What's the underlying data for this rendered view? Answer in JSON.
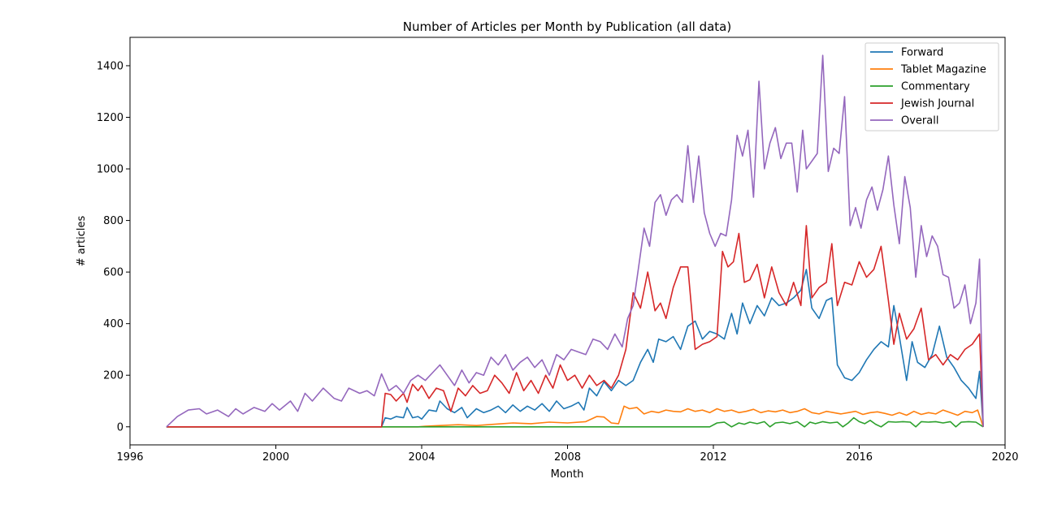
{
  "chart_data": {
    "type": "line",
    "title": "Number of Articles per Month by Publication (all data)",
    "xlabel": "Month",
    "ylabel": "# articles",
    "xlim": [
      1996,
      2020
    ],
    "ylim": [
      -70,
      1510
    ],
    "x_ticks": [
      {
        "value": 1996,
        "label": "1996"
      },
      {
        "value": 2000,
        "label": "2000"
      },
      {
        "value": 2004,
        "label": "2004"
      },
      {
        "value": 2008,
        "label": "2008"
      },
      {
        "value": 2012,
        "label": "2012"
      },
      {
        "value": 2016,
        "label": "2016"
      },
      {
        "value": 2020,
        "label": "2020"
      }
    ],
    "y_ticks": [
      {
        "value": 0,
        "label": "0"
      },
      {
        "value": 200,
        "label": "200"
      },
      {
        "value": 400,
        "label": "400"
      },
      {
        "value": 600,
        "label": "600"
      },
      {
        "value": 800,
        "label": "800"
      },
      {
        "value": 1000,
        "label": "1000"
      },
      {
        "value": 1200,
        "label": "1200"
      },
      {
        "value": 1400,
        "label": "1400"
      }
    ],
    "grid": false,
    "legend_position": "top-right",
    "series": [
      {
        "name": "Forward",
        "color": "#1f77b4",
        "x": [
          1997.0,
          2002.9,
          2003.0,
          2003.15,
          2003.3,
          2003.5,
          2003.6,
          2003.75,
          2003.9,
          2004.0,
          2004.2,
          2004.4,
          2004.5,
          2004.7,
          2004.9,
          2005.1,
          2005.25,
          2005.5,
          2005.7,
          2005.9,
          2006.1,
          2006.3,
          2006.5,
          2006.7,
          2006.9,
          2007.1,
          2007.3,
          2007.5,
          2007.7,
          2007.9,
          2008.1,
          2008.3,
          2008.45,
          2008.6,
          2008.8,
          2009.0,
          2009.2,
          2009.4,
          2009.6,
          2009.8,
          2010.0,
          2010.2,
          2010.35,
          2010.5,
          2010.7,
          2010.9,
          2011.1,
          2011.3,
          2011.5,
          2011.7,
          2011.9,
          2012.1,
          2012.3,
          2012.5,
          2012.65,
          2012.8,
          2013.0,
          2013.2,
          2013.4,
          2013.6,
          2013.8,
          2014.0,
          2014.2,
          2014.4,
          2014.55,
          2014.7,
          2014.9,
          2015.1,
          2015.25,
          2015.4,
          2015.6,
          2015.8,
          2016.0,
          2016.2,
          2016.4,
          2016.6,
          2016.8,
          2016.95,
          2017.1,
          2017.3,
          2017.45,
          2017.6,
          2017.8,
          2018.0,
          2018.2,
          2018.4,
          2018.6,
          2018.8,
          2019.0,
          2019.1,
          2019.2,
          2019.3,
          2019.4
        ],
        "y": [
          0,
          0,
          35,
          30,
          40,
          35,
          75,
          35,
          40,
          30,
          65,
          60,
          100,
          70,
          55,
          75,
          35,
          70,
          55,
          65,
          80,
          55,
          85,
          60,
          80,
          65,
          90,
          60,
          100,
          70,
          80,
          95,
          65,
          150,
          120,
          175,
          140,
          180,
          160,
          180,
          250,
          300,
          250,
          340,
          330,
          350,
          300,
          390,
          410,
          340,
          370,
          360,
          340,
          440,
          360,
          480,
          400,
          470,
          430,
          500,
          470,
          480,
          500,
          530,
          610,
          460,
          420,
          490,
          500,
          240,
          190,
          180,
          210,
          260,
          300,
          330,
          310,
          470,
          350,
          180,
          330,
          250,
          230,
          280,
          390,
          270,
          230,
          180,
          150,
          130,
          110,
          215,
          0
        ]
      },
      {
        "name": "Tablet Magazine",
        "color": "#ff7f0e",
        "x": [
          1997.0,
          2003.9,
          2004.1,
          2004.5,
          2005.0,
          2005.5,
          2006.0,
          2006.5,
          2007.0,
          2007.5,
          2008.0,
          2008.5,
          2008.8,
          2009.0,
          2009.2,
          2009.4,
          2009.55,
          2009.7,
          2009.9,
          2010.1,
          2010.3,
          2010.5,
          2010.7,
          2010.9,
          2011.1,
          2011.3,
          2011.5,
          2011.7,
          2011.9,
          2012.1,
          2012.3,
          2012.5,
          2012.7,
          2012.9,
          2013.1,
          2013.3,
          2013.5,
          2013.7,
          2013.9,
          2014.1,
          2014.3,
          2014.5,
          2014.7,
          2014.9,
          2015.1,
          2015.3,
          2015.5,
          2015.7,
          2015.9,
          2016.1,
          2016.3,
          2016.5,
          2016.7,
          2016.9,
          2017.1,
          2017.3,
          2017.5,
          2017.7,
          2017.9,
          2018.1,
          2018.3,
          2018.5,
          2018.7,
          2018.9,
          2019.1,
          2019.25,
          2019.4
        ],
        "y": [
          0,
          0,
          2,
          5,
          8,
          5,
          10,
          15,
          12,
          18,
          15,
          20,
          40,
          38,
          15,
          12,
          80,
          70,
          75,
          50,
          60,
          55,
          65,
          60,
          58,
          70,
          60,
          65,
          55,
          70,
          60,
          65,
          55,
          60,
          68,
          55,
          62,
          58,
          65,
          55,
          60,
          70,
          55,
          50,
          60,
          55,
          50,
          55,
          60,
          48,
          55,
          58,
          52,
          45,
          55,
          45,
          60,
          48,
          55,
          50,
          65,
          55,
          45,
          60,
          55,
          65,
          0
        ]
      },
      {
        "name": "Commentary",
        "color": "#2ca02c",
        "x": [
          1997.0,
          2011.9,
          2012.1,
          2012.3,
          2012.5,
          2012.7,
          2012.85,
          2013.0,
          2013.2,
          2013.4,
          2013.55,
          2013.7,
          2013.9,
          2014.1,
          2014.3,
          2014.5,
          2014.65,
          2014.8,
          2015.0,
          2015.2,
          2015.4,
          2015.55,
          2015.7,
          2015.85,
          2016.0,
          2016.15,
          2016.3,
          2016.45,
          2016.6,
          2016.8,
          2017.0,
          2017.2,
          2017.4,
          2017.55,
          2017.7,
          2017.9,
          2018.1,
          2018.3,
          2018.5,
          2018.65,
          2018.8,
          2019.0,
          2019.2,
          2019.4
        ],
        "y": [
          0,
          0,
          15,
          18,
          0,
          15,
          10,
          18,
          12,
          20,
          0,
          15,
          18,
          12,
          20,
          0,
          18,
          12,
          20,
          15,
          18,
          0,
          15,
          35,
          20,
          12,
          25,
          10,
          0,
          20,
          18,
          20,
          18,
          0,
          20,
          18,
          20,
          15,
          20,
          0,
          18,
          20,
          18,
          0
        ]
      },
      {
        "name": "Jewish Journal",
        "color": "#d62728",
        "x": [
          1997.0,
          2002.9,
          2003.0,
          2003.15,
          2003.3,
          2003.5,
          2003.6,
          2003.75,
          2003.9,
          2004.0,
          2004.2,
          2004.4,
          2004.6,
          2004.8,
          2005.0,
          2005.2,
          2005.4,
          2005.6,
          2005.8,
          2006.0,
          2006.2,
          2006.4,
          2006.6,
          2006.8,
          2007.0,
          2007.2,
          2007.4,
          2007.6,
          2007.8,
          2008.0,
          2008.2,
          2008.4,
          2008.6,
          2008.8,
          2009.0,
          2009.2,
          2009.4,
          2009.6,
          2009.8,
          2010.0,
          2010.2,
          2010.4,
          2010.55,
          2010.7,
          2010.9,
          2011.1,
          2011.3,
          2011.5,
          2011.7,
          2011.9,
          2012.1,
          2012.25,
          2012.4,
          2012.55,
          2012.7,
          2012.85,
          2013.0,
          2013.2,
          2013.4,
          2013.6,
          2013.8,
          2014.0,
          2014.2,
          2014.4,
          2014.55,
          2014.7,
          2014.9,
          2015.1,
          2015.25,
          2015.4,
          2015.6,
          2015.8,
          2016.0,
          2016.2,
          2016.4,
          2016.6,
          2016.8,
          2016.95,
          2017.1,
          2017.3,
          2017.5,
          2017.7,
          2017.9,
          2018.1,
          2018.3,
          2018.5,
          2018.7,
          2018.9,
          2019.1,
          2019.3,
          2019.4
        ],
        "y": [
          0,
          0,
          130,
          125,
          100,
          130,
          95,
          165,
          140,
          160,
          110,
          150,
          140,
          60,
          150,
          120,
          160,
          130,
          140,
          200,
          170,
          130,
          210,
          140,
          180,
          130,
          200,
          150,
          240,
          180,
          200,
          150,
          200,
          160,
          180,
          150,
          200,
          300,
          520,
          460,
          600,
          450,
          480,
          420,
          540,
          620,
          620,
          300,
          320,
          330,
          350,
          680,
          620,
          640,
          750,
          560,
          570,
          630,
          500,
          620,
          520,
          470,
          560,
          470,
          780,
          500,
          540,
          560,
          710,
          470,
          560,
          550,
          640,
          580,
          610,
          700,
          490,
          320,
          440,
          340,
          380,
          460,
          260,
          280,
          240,
          280,
          260,
          300,
          320,
          360,
          0
        ]
      },
      {
        "name": "Overall",
        "color": "#9467bd",
        "x": [
          1997.0,
          1997.3,
          1997.6,
          1997.9,
          1998.1,
          1998.4,
          1998.7,
          1998.9,
          1999.1,
          1999.4,
          1999.7,
          1999.9,
          2000.1,
          2000.4,
          2000.6,
          2000.8,
          2001.0,
          2001.3,
          2001.6,
          2001.8,
          2002.0,
          2002.3,
          2002.5,
          2002.7,
          2002.9,
          2003.1,
          2003.3,
          2003.5,
          2003.7,
          2003.9,
          2004.1,
          2004.3,
          2004.5,
          2004.7,
          2004.9,
          2005.1,
          2005.3,
          2005.5,
          2005.7,
          2005.9,
          2006.1,
          2006.3,
          2006.5,
          2006.7,
          2006.9,
          2007.1,
          2007.3,
          2007.5,
          2007.7,
          2007.9,
          2008.1,
          2008.3,
          2008.5,
          2008.7,
          2008.9,
          2009.1,
          2009.3,
          2009.5,
          2009.65,
          2009.8,
          2009.95,
          2010.1,
          2010.25,
          2010.4,
          2010.55,
          2010.7,
          2010.85,
          2011.0,
          2011.15,
          2011.3,
          2011.45,
          2011.6,
          2011.75,
          2011.9,
          2012.05,
          2012.2,
          2012.35,
          2012.5,
          2012.65,
          2012.8,
          2012.95,
          2013.1,
          2013.25,
          2013.4,
          2013.55,
          2013.7,
          2013.85,
          2014.0,
          2014.15,
          2014.3,
          2014.45,
          2014.55,
          2014.7,
          2014.85,
          2015.0,
          2015.15,
          2015.3,
          2015.45,
          2015.6,
          2015.75,
          2015.9,
          2016.05,
          2016.2,
          2016.35,
          2016.5,
          2016.65,
          2016.8,
          2016.95,
          2017.1,
          2017.25,
          2017.4,
          2017.55,
          2017.7,
          2017.85,
          2018.0,
          2018.15,
          2018.3,
          2018.45,
          2018.6,
          2018.75,
          2018.9,
          2019.05,
          2019.2,
          2019.3,
          2019.4
        ],
        "y": [
          0,
          40,
          65,
          70,
          50,
          65,
          40,
          70,
          50,
          75,
          60,
          90,
          65,
          100,
          60,
          130,
          100,
          150,
          110,
          100,
          150,
          130,
          140,
          120,
          205,
          140,
          160,
          130,
          180,
          200,
          180,
          210,
          240,
          200,
          160,
          220,
          170,
          210,
          200,
          270,
          240,
          280,
          220,
          250,
          270,
          230,
          260,
          200,
          280,
          260,
          300,
          290,
          280,
          340,
          330,
          300,
          360,
          310,
          420,
          470,
          620,
          770,
          700,
          870,
          900,
          820,
          880,
          900,
          870,
          1090,
          870,
          1050,
          830,
          750,
          700,
          750,
          740,
          880,
          1130,
          1050,
          1150,
          890,
          1340,
          1000,
          1100,
          1160,
          1040,
          1100,
          1100,
          910,
          1150,
          1000,
          1030,
          1060,
          1440,
          990,
          1080,
          1060,
          1280,
          780,
          850,
          770,
          880,
          930,
          840,
          920,
          1050,
          860,
          710,
          970,
          850,
          580,
          780,
          660,
          740,
          700,
          590,
          580,
          460,
          480,
          550,
          400,
          480,
          650,
          0
        ]
      }
    ]
  }
}
